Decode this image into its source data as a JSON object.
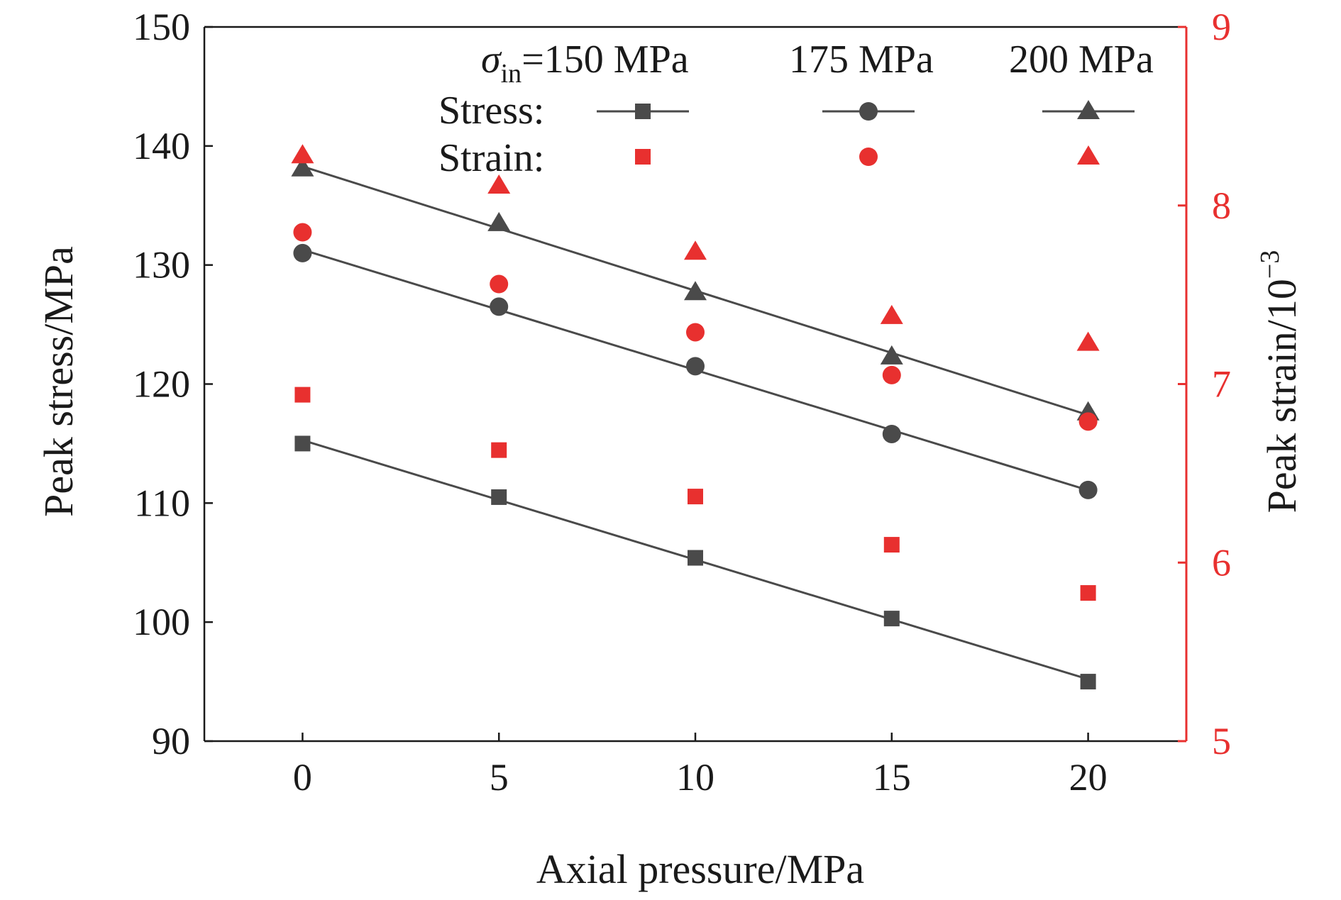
{
  "chart_data": {
    "type": "scatter",
    "x_label": "Axial pressure/MPa",
    "y_label": "Peak stress/MPa",
    "y2_label": "Peak strain/10",
    "y2_label_exponent": "−3",
    "x_ticks": [
      0,
      5,
      10,
      15,
      20
    ],
    "y_ticks": [
      90,
      100,
      110,
      120,
      130,
      140,
      150
    ],
    "y2_ticks": [
      5,
      6,
      7,
      8,
      9
    ],
    "xlim": [
      -2.5,
      22.5
    ],
    "ylim": [
      90,
      150
    ],
    "y2lim": [
      5,
      9
    ],
    "x": [
      0,
      5,
      10,
      15,
      20
    ],
    "legend": {
      "header_symbol": "σ",
      "header_subscript": "in",
      "header_first": "=150 MPa",
      "header_second": "175 MPa",
      "header_third": "200 MPa",
      "stress_label": "Stress:",
      "strain_label": "Strain:"
    },
    "colors": {
      "stress": "#4a4a4a",
      "strain": "#e8302f",
      "axis_left": "#1a1a1a",
      "axis_right": "#e8302f"
    },
    "stress_series": [
      {
        "marker": "square",
        "values": [
          115.0,
          110.5,
          105.4,
          100.3,
          95.0
        ]
      },
      {
        "marker": "circle",
        "values": [
          131.0,
          126.5,
          121.5,
          115.8,
          111.1
        ]
      },
      {
        "marker": "triangle",
        "values": [
          138.1,
          133.5,
          127.7,
          122.3,
          117.6
        ]
      }
    ],
    "strain_series": [
      {
        "marker": "square",
        "values": [
          6.94,
          6.63,
          6.37,
          6.1,
          5.83
        ]
      },
      {
        "marker": "circle",
        "values": [
          7.85,
          7.56,
          7.29,
          7.05,
          6.79
        ]
      },
      {
        "marker": "triangle",
        "values": [
          8.28,
          8.11,
          7.74,
          7.38,
          7.23
        ]
      }
    ]
  }
}
